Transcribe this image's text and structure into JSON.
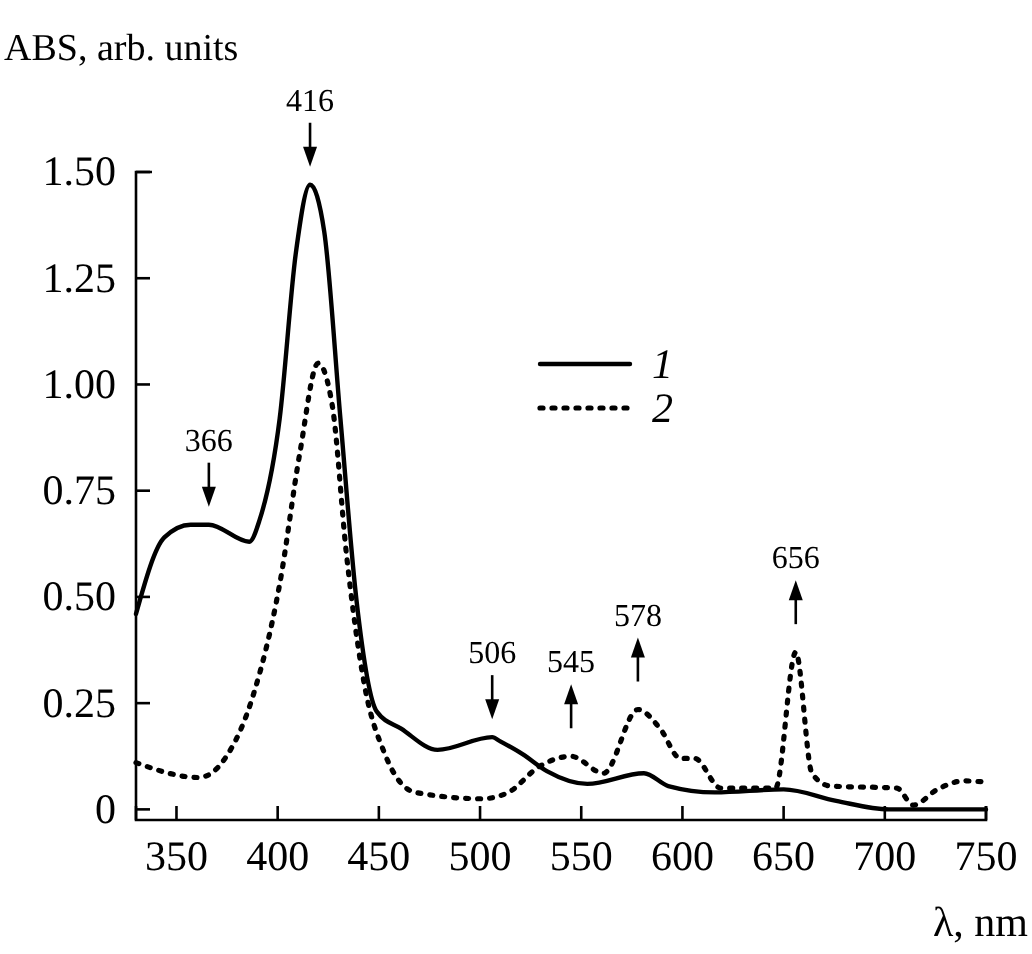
{
  "chart_data": {
    "type": "line",
    "xlabel": "λ, nm",
    "ylabel": "ABS, arb. units",
    "xlim": [
      330,
      750
    ],
    "xticks": [
      350,
      400,
      450,
      500,
      550,
      600,
      650,
      700,
      750
    ],
    "ylim": [
      -0.025,
      1.5
    ],
    "yticks": [
      0,
      0.25,
      {
        "value": 0.5,
        "label": "0.50"
      },
      0.75,
      {
        "value": 1,
        "label": "1.00"
      },
      1.25,
      {
        "value": 1.5,
        "label": "1.50"
      }
    ],
    "grid": false,
    "legend": "right",
    "marker": "none",
    "series": [
      {
        "name": "1",
        "color": "#000000",
        "line_style": "solid",
        "x": [
          330,
          344,
          357,
          366,
          386,
          391,
          401,
          409,
          416,
          423,
          431,
          439,
          449,
          461,
          479,
          506,
          510,
          521,
          533,
          553,
          581,
          593,
          616,
          650,
          676,
          702,
          750
        ],
        "values": [
          0.46,
          0.64,
          0.67,
          0.67,
          0.63,
          0.68,
          0.92,
          1.31,
          1.47,
          1.36,
          0.92,
          0.49,
          0.23,
          0.19,
          0.14,
          0.17,
          0.16,
          0.13,
          0.09,
          0.06,
          0.085,
          0.055,
          0.04,
          0.047,
          0.02,
          0,
          0
        ]
      },
      {
        "name": "2",
        "color": "#000000",
        "line_style": "dotted",
        "x": [
          330,
          361,
          374,
          388,
          401,
          411,
          420,
          427,
          434,
          443,
          453,
          468,
          501,
          514,
          529,
          545,
          561,
          578,
          589,
          599,
          606,
          619,
          646,
          656,
          664,
          673,
          706,
          714,
          726,
          739,
          748
        ],
        "values": [
          0.11,
          0.075,
          0.12,
          0.27,
          0.53,
          0.84,
          1.05,
          0.95,
          0.6,
          0.29,
          0.13,
          0.04,
          0.025,
          0.04,
          0.1,
          0.125,
          0.085,
          0.235,
          0.19,
          0.12,
          0.12,
          0.05,
          0.05,
          0.37,
          0.085,
          0.055,
          0.05,
          0.01,
          0.047,
          0.067,
          0.065
        ]
      }
    ],
    "annotations": [
      {
        "text": "366",
        "x": 366,
        "y": 0.67
      },
      {
        "text": "416",
        "x": 416,
        "y": 1.47
      },
      {
        "text": "506",
        "x": 506,
        "y": 0.17
      },
      {
        "text": "545",
        "x": 545,
        "y": 0.125
      },
      {
        "text": "578",
        "x": 578,
        "y": 0.235
      },
      {
        "text": "656",
        "x": 656,
        "y": 0.37
      }
    ]
  }
}
